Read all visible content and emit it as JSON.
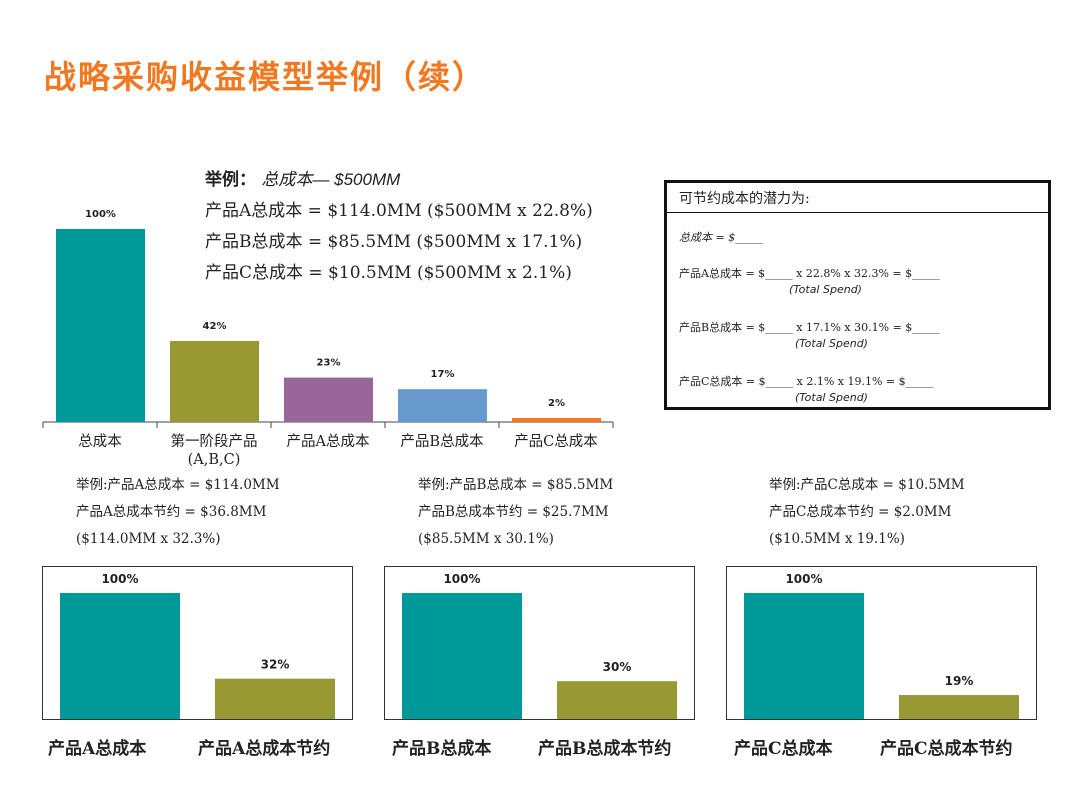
{
  "title": "战略采购收益模型举例（续）",
  "example": {
    "head_label": "举例：",
    "head_value": "总成本— $500MM",
    "lines": [
      "产品A总成本 = $114.0MM ($500MM x 22.8%)",
      "产品B总成本 = $85.5MM ($500MM x 17.1%)",
      "产品C总成本 = $10.5MM ($500MM x 2.1%)"
    ]
  },
  "savings_box": {
    "header": "可节约成本的潜力为:",
    "total_line": "总成本 = $_____",
    "rows": [
      {
        "text": "产品A总成本 = $_____  x 22.8% x 32.3% = $_____",
        "note": "(Total Spend)"
      },
      {
        "text": "产品B总成本 = $_____  x 17.1% x 30.1% = $_____",
        "note": "(Total Spend)"
      },
      {
        "text": "产品C总成本 = $_____  x 2.1% x 19.1% = $_____",
        "note": "(Total Spend)"
      }
    ]
  },
  "sub_examples": [
    {
      "l1": "举例:产品A总成本 = $114.0MM",
      "l2": "产品A总成本节约 = $36.8MM",
      "l3": "($114.0MM x 32.3%)"
    },
    {
      "l1": "举例:产品B总成本 = $85.5MM",
      "l2": "产品B总成本节约 = $25.7MM",
      "l3": "($85.5MM x 30.1%)"
    },
    {
      "l1": "举例:产品C总成本 = $10.5MM",
      "l2": "产品C总成本节约 = $2.0MM",
      "l3": "($10.5MM x 19.1%)"
    }
  ],
  "chart_data": [
    {
      "type": "bar",
      "title": "",
      "categories": [
        "总成本",
        "第一阶段产品 (A,B,C)",
        "产品A总成本",
        "产品B总成本",
        "产品C总成本"
      ],
      "category_lines": [
        [
          "总成本"
        ],
        [
          "第一阶段产品",
          "(A,B,C)"
        ],
        [
          "产品A总成本"
        ],
        [
          "产品B总成本"
        ],
        [
          "产品C总成本"
        ]
      ],
      "values": [
        100,
        42,
        23,
        17,
        2
      ],
      "labels": [
        "100%",
        "42%",
        "23%",
        "17%",
        "2%"
      ],
      "colors": [
        "#009999",
        "#999933",
        "#996699",
        "#6699cc",
        "#f07820"
      ],
      "ylim": [
        0,
        100
      ]
    },
    {
      "type": "bar",
      "categories": [
        "产品A总成本",
        "产品A总成本节约"
      ],
      "values": [
        100,
        32
      ],
      "labels": [
        "100%",
        "32%"
      ],
      "colors": [
        "#009999",
        "#999933"
      ],
      "ylim": [
        0,
        100
      ]
    },
    {
      "type": "bar",
      "categories": [
        "产品B总成本",
        "产品B总成本节约"
      ],
      "values": [
        100,
        30
      ],
      "labels": [
        "100%",
        "30%"
      ],
      "colors": [
        "#009999",
        "#999933"
      ],
      "ylim": [
        0,
        100
      ]
    },
    {
      "type": "bar",
      "categories": [
        "产品C总成本",
        "产品C总成本节约"
      ],
      "values": [
        100,
        19
      ],
      "labels": [
        "100%",
        "19%"
      ],
      "colors": [
        "#009999",
        "#999933"
      ],
      "ylim": [
        0,
        100
      ]
    }
  ]
}
